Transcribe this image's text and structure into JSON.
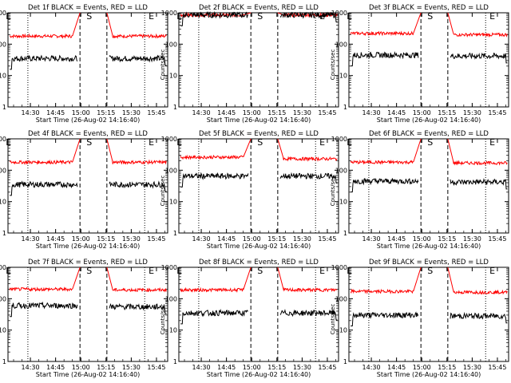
{
  "chart_data": [
    {
      "type": "line",
      "title": "Det 1f BLACK = Events, RED = LLD",
      "xlabel": "Start Time (26-Aug-02 14:16:40)",
      "ylabel": "Counts/sec",
      "x_ticks": [
        "14:30",
        "14:45",
        "15:00",
        "15:15",
        "15:30",
        "15:45"
      ],
      "y_ticks": [
        "1",
        "10",
        "100",
        "1000"
      ],
      "ylim": [
        1,
        1000
      ],
      "yscale": "log",
      "markers": [
        {
          "label": "E",
          "x": "14:17"
        },
        {
          "label": "S",
          "x": "15:05"
        },
        {
          "label": "E",
          "x": "15:42"
        }
      ],
      "gap": [
        "15:00",
        "15:15"
      ],
      "series": [
        {
          "name": "RED",
          "color": "#ff0000",
          "before": 180,
          "after": 180,
          "peak": 1000
        },
        {
          "name": "BLACK",
          "color": "#000000",
          "before": 35,
          "after": 35
        }
      ]
    },
    {
      "type": "line",
      "title": "Det 2f BLACK = Events, RED = LLD",
      "xlabel": "Start Time (26-Aug-02 14:16:40)",
      "ylabel": "Counts/sec",
      "x_ticks": [
        "14:30",
        "14:45",
        "15:00",
        "15:15",
        "15:30",
        "15:45"
      ],
      "y_ticks": [
        "1",
        "10",
        "100",
        "1000"
      ],
      "ylim": [
        1,
        1000
      ],
      "yscale": "log",
      "markers": [
        {
          "label": "E",
          "x": "14:17"
        },
        {
          "label": "S",
          "x": "15:05"
        },
        {
          "label": "E",
          "x": "15:42"
        }
      ],
      "gap": [
        "15:00",
        "15:15"
      ],
      "series": [
        {
          "name": "RED",
          "color": "#ff0000",
          "before": 850,
          "after": 850,
          "peak": 1000
        },
        {
          "name": "BLACK",
          "color": "#000000",
          "before": 850,
          "after": 850
        }
      ]
    },
    {
      "type": "line",
      "title": "Det 3f BLACK = Events, RED = LLD",
      "xlabel": "Start Time (26-Aug-02 14:16:40)",
      "ylabel": "Counts/sec",
      "x_ticks": [
        "14:30",
        "14:45",
        "15:00",
        "15:15",
        "15:30",
        "15:45"
      ],
      "y_ticks": [
        "1",
        "10",
        "100",
        "1000"
      ],
      "ylim": [
        1,
        1000
      ],
      "yscale": "log",
      "markers": [
        {
          "label": "E",
          "x": "14:17"
        },
        {
          "label": "S",
          "x": "15:05"
        },
        {
          "label": "E",
          "x": "15:42"
        }
      ],
      "gap": [
        "15:00",
        "15:15"
      ],
      "series": [
        {
          "name": "RED",
          "color": "#ff0000",
          "before": 220,
          "after": 200,
          "peak": 1000
        },
        {
          "name": "BLACK",
          "color": "#000000",
          "before": 45,
          "after": 42
        }
      ]
    },
    {
      "type": "line",
      "title": "Det 4f BLACK = Events, RED = LLD",
      "xlabel": "Start Time (26-Aug-02 14:16:40)",
      "ylabel": "Counts/sec",
      "x_ticks": [
        "14:30",
        "14:45",
        "15:00",
        "15:15",
        "15:30",
        "15:45"
      ],
      "y_ticks": [
        "1",
        "10",
        "100",
        "1000"
      ],
      "ylim": [
        1,
        1000
      ],
      "yscale": "log",
      "markers": [
        {
          "label": "E",
          "x": "14:17"
        },
        {
          "label": "S",
          "x": "15:05"
        },
        {
          "label": "E",
          "x": "15:42"
        }
      ],
      "gap": [
        "15:00",
        "15:15"
      ],
      "series": [
        {
          "name": "RED",
          "color": "#ff0000",
          "before": 180,
          "after": 180,
          "peak": 1000
        },
        {
          "name": "BLACK",
          "color": "#000000",
          "before": 35,
          "after": 35
        }
      ]
    },
    {
      "type": "line",
      "title": "Det 5f BLACK = Events, RED = LLD",
      "xlabel": "Start Time (26-Aug-02 14:16:40)",
      "ylabel": "Counts/sec",
      "x_ticks": [
        "14:30",
        "14:45",
        "15:00",
        "15:15",
        "15:30",
        "15:45"
      ],
      "y_ticks": [
        "1",
        "10",
        "100",
        "1000"
      ],
      "ylim": [
        1,
        1000
      ],
      "yscale": "log",
      "markers": [
        {
          "label": "E",
          "x": "14:17"
        },
        {
          "label": "S",
          "x": "15:05"
        },
        {
          "label": "E",
          "x": "15:42"
        }
      ],
      "gap": [
        "15:00",
        "15:15"
      ],
      "series": [
        {
          "name": "RED",
          "color": "#ff0000",
          "before": 260,
          "after": 230,
          "peak": 1000
        },
        {
          "name": "BLACK",
          "color": "#000000",
          "before": 65,
          "after": 65
        }
      ]
    },
    {
      "type": "line",
      "title": "Det 6f BLACK = Events, RED = LLD",
      "xlabel": "Start Time (26-Aug-02 14:16:40)",
      "ylabel": "Counts/sec",
      "x_ticks": [
        "14:30",
        "14:45",
        "15:00",
        "15:15",
        "15:30",
        "15:45"
      ],
      "y_ticks": [
        "1",
        "10",
        "100",
        "1000"
      ],
      "ylim": [
        1,
        1000
      ],
      "yscale": "log",
      "markers": [
        {
          "label": "E",
          "x": "14:17"
        },
        {
          "label": "S",
          "x": "15:05"
        },
        {
          "label": "E",
          "x": "15:42"
        }
      ],
      "gap": [
        "15:00",
        "15:15"
      ],
      "series": [
        {
          "name": "RED",
          "color": "#ff0000",
          "before": 180,
          "after": 170,
          "peak": 1000
        },
        {
          "name": "BLACK",
          "color": "#000000",
          "before": 45,
          "after": 42
        }
      ]
    },
    {
      "type": "line",
      "title": "Det 7f BLACK = Events, RED = LLD",
      "xlabel": "Start Time (26-Aug-02 14:16:40)",
      "ylabel": "Counts/sec",
      "x_ticks": [
        "14:30",
        "14:45",
        "15:00",
        "15:15",
        "15:30",
        "15:45"
      ],
      "y_ticks": [
        "1",
        "10",
        "100",
        "1000"
      ],
      "ylim": [
        1,
        1000
      ],
      "yscale": "log",
      "markers": [
        {
          "label": "E",
          "x": "14:17"
        },
        {
          "label": "S",
          "x": "15:05"
        },
        {
          "label": "E",
          "x": "15:42"
        }
      ],
      "gap": [
        "15:00",
        "15:15"
      ],
      "series": [
        {
          "name": "RED",
          "color": "#ff0000",
          "before": 200,
          "after": 190,
          "peak": 1000
        },
        {
          "name": "BLACK",
          "color": "#000000",
          "before": 60,
          "after": 55
        }
      ]
    },
    {
      "type": "line",
      "title": "Det 8f BLACK = Events, RED = LLD",
      "xlabel": "Start Time (26-Aug-02 14:16:40)",
      "ylabel": "Counts/sec",
      "x_ticks": [
        "14:30",
        "14:45",
        "15:00",
        "15:15",
        "15:30",
        "15:45"
      ],
      "y_ticks": [
        "1",
        "10",
        "100",
        "1000"
      ],
      "ylim": [
        1,
        1000
      ],
      "yscale": "log",
      "markers": [
        {
          "label": "E",
          "x": "14:17"
        },
        {
          "label": "S",
          "x": "15:05"
        },
        {
          "label": "E",
          "x": "15:42"
        }
      ],
      "gap": [
        "15:00",
        "15:15"
      ],
      "series": [
        {
          "name": "RED",
          "color": "#ff0000",
          "before": 190,
          "after": 190,
          "peak": 1000
        },
        {
          "name": "BLACK",
          "color": "#000000",
          "before": 35,
          "after": 35
        }
      ]
    },
    {
      "type": "line",
      "title": "Det 9f BLACK = Events, RED = LLD",
      "xlabel": "Start Time (26-Aug-02 14:16:40)",
      "ylabel": "Counts/sec",
      "x_ticks": [
        "14:30",
        "14:45",
        "15:00",
        "15:15",
        "15:30",
        "15:45"
      ],
      "y_ticks": [
        "1",
        "10",
        "100",
        "1000"
      ],
      "ylim": [
        1,
        1000
      ],
      "yscale": "log",
      "markers": [
        {
          "label": "E",
          "x": "14:17"
        },
        {
          "label": "S",
          "x": "15:05"
        },
        {
          "label": "E",
          "x": "15:42"
        }
      ],
      "gap": [
        "15:00",
        "15:15"
      ],
      "series": [
        {
          "name": "RED",
          "color": "#ff0000",
          "before": 170,
          "after": 160,
          "peak": 1000
        },
        {
          "name": "BLACK",
          "color": "#000000",
          "before": 30,
          "after": 28
        }
      ]
    }
  ]
}
